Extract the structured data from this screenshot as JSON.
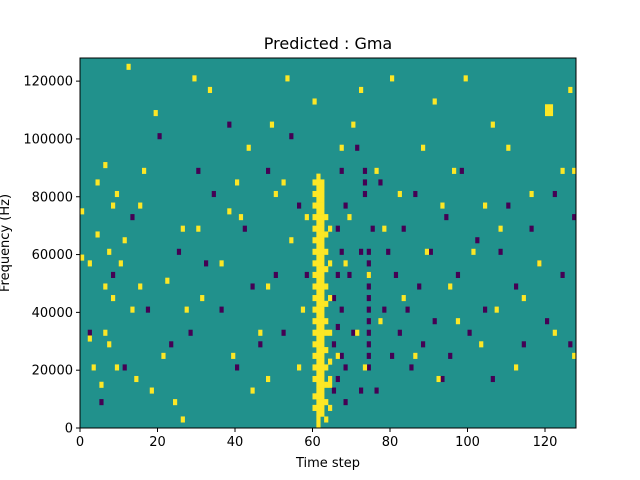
{
  "chart_data": {
    "type": "heatmap",
    "title": "Predicted : Gma",
    "xlabel": "Time step",
    "ylabel": "Frequency (Hz)",
    "xlim": [
      0,
      128
    ],
    "ylim": [
      0,
      128000
    ],
    "x_ticks": [
      0,
      20,
      40,
      60,
      80,
      100,
      120
    ],
    "y_ticks": [
      0,
      20000,
      40000,
      60000,
      80000,
      100000,
      120000
    ],
    "grid": false,
    "legend": "none",
    "colors": {
      "background": "#21918c",
      "low": "#440154",
      "high": "#fde725"
    },
    "cell_width": 1,
    "cell_height": 2000,
    "high_cells": [
      [
        61,
        0
      ],
      [
        61,
        1
      ],
      [
        61,
        2
      ],
      [
        61,
        3
      ],
      [
        61,
        4
      ],
      [
        61,
        5
      ],
      [
        61,
        6
      ],
      [
        61,
        7
      ],
      [
        61,
        8
      ],
      [
        61,
        9
      ],
      [
        61,
        10
      ],
      [
        61,
        11
      ],
      [
        61,
        12
      ],
      [
        61,
        13
      ],
      [
        61,
        14
      ],
      [
        61,
        15
      ],
      [
        61,
        16
      ],
      [
        61,
        17
      ],
      [
        61,
        18
      ],
      [
        61,
        19
      ],
      [
        61,
        20
      ],
      [
        61,
        21
      ],
      [
        61,
        22
      ],
      [
        61,
        23
      ],
      [
        61,
        24
      ],
      [
        61,
        25
      ],
      [
        61,
        26
      ],
      [
        61,
        27
      ],
      [
        61,
        28
      ],
      [
        61,
        29
      ],
      [
        61,
        30
      ],
      [
        61,
        31
      ],
      [
        61,
        32
      ],
      [
        61,
        33
      ],
      [
        61,
        34
      ],
      [
        61,
        35
      ],
      [
        61,
        36
      ],
      [
        61,
        37
      ],
      [
        61,
        38
      ],
      [
        61,
        39
      ],
      [
        61,
        40
      ],
      [
        61,
        41
      ],
      [
        61,
        42
      ],
      [
        61,
        43
      ],
      [
        62,
        2
      ],
      [
        62,
        3
      ],
      [
        62,
        4
      ],
      [
        62,
        5
      ],
      [
        62,
        6
      ],
      [
        62,
        7
      ],
      [
        62,
        8
      ],
      [
        62,
        9
      ],
      [
        62,
        10
      ],
      [
        62,
        11
      ],
      [
        62,
        12
      ],
      [
        62,
        13
      ],
      [
        62,
        14
      ],
      [
        62,
        15
      ],
      [
        62,
        16
      ],
      [
        62,
        17
      ],
      [
        62,
        18
      ],
      [
        62,
        19
      ],
      [
        62,
        20
      ],
      [
        62,
        21
      ],
      [
        62,
        22
      ],
      [
        62,
        23
      ],
      [
        62,
        24
      ],
      [
        62,
        25
      ],
      [
        62,
        26
      ],
      [
        62,
        27
      ],
      [
        62,
        28
      ],
      [
        62,
        29
      ],
      [
        62,
        30
      ],
      [
        62,
        31
      ],
      [
        62,
        32
      ],
      [
        62,
        33
      ],
      [
        62,
        34
      ],
      [
        62,
        35
      ],
      [
        62,
        36
      ],
      [
        62,
        37
      ],
      [
        62,
        38
      ],
      [
        62,
        39
      ],
      [
        62,
        40
      ],
      [
        62,
        41
      ],
      [
        62,
        42
      ],
      [
        60,
        3
      ],
      [
        60,
        5
      ],
      [
        60,
        8
      ],
      [
        60,
        10
      ],
      [
        60,
        12
      ],
      [
        60,
        14
      ],
      [
        60,
        16
      ],
      [
        60,
        18
      ],
      [
        60,
        20
      ],
      [
        60,
        22
      ],
      [
        60,
        24
      ],
      [
        60,
        26
      ],
      [
        60,
        28
      ],
      [
        60,
        30
      ],
      [
        60,
        32
      ],
      [
        60,
        34
      ],
      [
        60,
        36
      ],
      [
        60,
        38
      ],
      [
        60,
        40
      ],
      [
        60,
        42
      ],
      [
        63,
        1
      ],
      [
        63,
        4
      ],
      [
        63,
        7
      ],
      [
        63,
        10
      ],
      [
        63,
        13
      ],
      [
        63,
        16
      ],
      [
        63,
        18
      ],
      [
        63,
        21
      ],
      [
        63,
        24
      ],
      [
        63,
        27
      ],
      [
        63,
        30
      ],
      [
        63,
        33
      ],
      [
        63,
        36
      ],
      [
        64,
        3
      ],
      [
        64,
        7
      ],
      [
        64,
        11
      ],
      [
        64,
        16
      ],
      [
        64,
        22
      ],
      [
        64,
        28
      ],
      [
        64,
        34
      ],
      [
        0,
        37
      ],
      [
        0,
        29
      ],
      [
        2,
        28
      ],
      [
        2,
        15
      ],
      [
        3,
        10
      ],
      [
        4,
        33
      ],
      [
        4,
        42
      ],
      [
        5,
        7
      ],
      [
        6,
        16
      ],
      [
        6,
        24
      ],
      [
        6,
        45
      ],
      [
        7,
        14
      ],
      [
        7,
        30
      ],
      [
        8,
        22
      ],
      [
        8,
        38
      ],
      [
        9,
        10
      ],
      [
        9,
        40
      ],
      [
        10,
        28
      ],
      [
        11,
        32
      ],
      [
        12,
        62
      ],
      [
        13,
        20
      ],
      [
        14,
        8
      ],
      [
        15,
        38
      ],
      [
        15,
        24
      ],
      [
        16,
        44
      ],
      [
        18,
        6
      ],
      [
        19,
        54
      ],
      [
        21,
        12
      ],
      [
        22,
        25
      ],
      [
        24,
        4
      ],
      [
        26,
        1
      ],
      [
        26,
        34
      ],
      [
        27,
        20
      ],
      [
        29,
        60
      ],
      [
        30,
        34
      ],
      [
        31,
        22
      ],
      [
        33,
        58
      ],
      [
        36,
        28
      ],
      [
        38,
        37
      ],
      [
        39,
        12
      ],
      [
        40,
        42
      ],
      [
        41,
        36
      ],
      [
        43,
        48
      ],
      [
        44,
        6
      ],
      [
        46,
        16
      ],
      [
        48,
        24
      ],
      [
        48,
        8
      ],
      [
        49,
        52
      ],
      [
        50,
        40
      ],
      [
        52,
        42
      ],
      [
        53,
        60
      ],
      [
        54,
        32
      ],
      [
        56,
        10
      ],
      [
        57,
        20
      ],
      [
        58,
        36
      ],
      [
        60,
        56
      ],
      [
        64,
        8
      ],
      [
        66,
        12
      ],
      [
        67,
        48
      ],
      [
        68,
        28
      ],
      [
        69,
        36
      ],
      [
        70,
        52
      ],
      [
        71,
        16
      ],
      [
        72,
        58
      ],
      [
        73,
        10
      ],
      [
        74,
        26
      ],
      [
        76,
        44
      ],
      [
        77,
        18
      ],
      [
        78,
        34
      ],
      [
        80,
        60
      ],
      [
        82,
        40
      ],
      [
        83,
        22
      ],
      [
        86,
        12
      ],
      [
        88,
        48
      ],
      [
        89,
        30
      ],
      [
        91,
        56
      ],
      [
        92,
        8
      ],
      [
        93,
        38
      ],
      [
        95,
        24
      ],
      [
        96,
        44
      ],
      [
        97,
        18
      ],
      [
        99,
        60
      ],
      [
        101,
        30
      ],
      [
        103,
        14
      ],
      [
        104,
        38
      ],
      [
        106,
        52
      ],
      [
        107,
        20
      ],
      [
        108,
        34
      ],
      [
        110,
        48
      ],
      [
        112,
        10
      ],
      [
        114,
        22
      ],
      [
        116,
        40
      ],
      [
        118,
        28
      ],
      [
        120,
        54
      ],
      [
        120,
        55
      ],
      [
        121,
        54
      ],
      [
        121,
        55
      ],
      [
        122,
        16
      ],
      [
        124,
        44
      ],
      [
        126,
        58
      ],
      [
        127,
        12
      ],
      [
        127,
        44
      ]
    ],
    "low_cells": [
      [
        65,
        6
      ],
      [
        65,
        14
      ],
      [
        65,
        22
      ],
      [
        66,
        8
      ],
      [
        66,
        17
      ],
      [
        66,
        26
      ],
      [
        66,
        34
      ],
      [
        67,
        12
      ],
      [
        67,
        20
      ],
      [
        67,
        30
      ],
      [
        67,
        44
      ],
      [
        68,
        4
      ],
      [
        68,
        10
      ],
      [
        68,
        38
      ],
      [
        69,
        26
      ],
      [
        70,
        16
      ],
      [
        71,
        48
      ],
      [
        72,
        6
      ],
      [
        72,
        30
      ],
      [
        73,
        40
      ],
      [
        73,
        42
      ],
      [
        73,
        44
      ],
      [
        74,
        10
      ],
      [
        74,
        12
      ],
      [
        74,
        14
      ],
      [
        74,
        16
      ],
      [
        74,
        18
      ],
      [
        74,
        20
      ],
      [
        74,
        22
      ],
      [
        74,
        24
      ],
      [
        74,
        26
      ],
      [
        74,
        28
      ],
      [
        74,
        30
      ],
      [
        75,
        34
      ],
      [
        76,
        6
      ],
      [
        77,
        42
      ],
      [
        78,
        20
      ],
      [
        79,
        30
      ],
      [
        80,
        12
      ],
      [
        81,
        26
      ],
      [
        82,
        16
      ],
      [
        83,
        34
      ],
      [
        84,
        20
      ],
      [
        85,
        10
      ],
      [
        86,
        40
      ],
      [
        87,
        24
      ],
      [
        88,
        14
      ],
      [
        90,
        30
      ],
      [
        91,
        18
      ],
      [
        93,
        8
      ],
      [
        94,
        36
      ],
      [
        95,
        12
      ],
      [
        97,
        26
      ],
      [
        98,
        44
      ],
      [
        100,
        16
      ],
      [
        102,
        32
      ],
      [
        104,
        20
      ],
      [
        106,
        8
      ],
      [
        108,
        30
      ],
      [
        110,
        38
      ],
      [
        112,
        24
      ],
      [
        114,
        14
      ],
      [
        116,
        34
      ],
      [
        118,
        28
      ],
      [
        120,
        18
      ],
      [
        122,
        40
      ],
      [
        124,
        26
      ],
      [
        126,
        14
      ],
      [
        127,
        36
      ],
      [
        2,
        16
      ],
      [
        5,
        4
      ],
      [
        8,
        26
      ],
      [
        11,
        10
      ],
      [
        13,
        36
      ],
      [
        17,
        20
      ],
      [
        20,
        50
      ],
      [
        23,
        14
      ],
      [
        25,
        30
      ],
      [
        28,
        16
      ],
      [
        30,
        44
      ],
      [
        32,
        28
      ],
      [
        34,
        40
      ],
      [
        36,
        20
      ],
      [
        38,
        52
      ],
      [
        40,
        10
      ],
      [
        42,
        34
      ],
      [
        44,
        24
      ],
      [
        46,
        14
      ],
      [
        48,
        44
      ],
      [
        50,
        26
      ],
      [
        52,
        16
      ],
      [
        54,
        50
      ],
      [
        56,
        38
      ],
      [
        58,
        26
      ]
    ]
  }
}
